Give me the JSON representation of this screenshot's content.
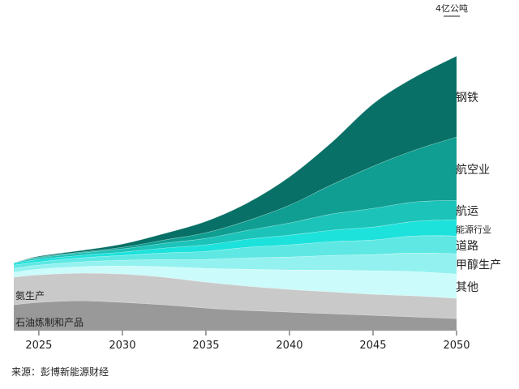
{
  "chart_data": {
    "type": "area",
    "stacked": true,
    "title": "",
    "xlabel": "",
    "ylabel": "",
    "unit_label": "4亿公吨",
    "x": [
      2023.5,
      2025,
      2027.5,
      2030,
      2032.5,
      2035,
      2037.5,
      2040,
      2042.5,
      2045,
      2047.5,
      2050
    ],
    "xlim": [
      2023.5,
      2050
    ],
    "ylim": [
      0,
      4
    ],
    "xticks": [
      "2025",
      "2030",
      "2035",
      "2040",
      "2045",
      "2050"
    ],
    "series": [
      {
        "name": "石油炼制和产品",
        "color": "#999999",
        "values": [
          0.32,
          0.35,
          0.37,
          0.35,
          0.32,
          0.28,
          0.25,
          0.23,
          0.21,
          0.19,
          0.17,
          0.15
        ]
      },
      {
        "name": "氨生产",
        "color": "#c9c9c9",
        "values": [
          0.34,
          0.34,
          0.34,
          0.35,
          0.34,
          0.32,
          0.3,
          0.28,
          0.27,
          0.26,
          0.26,
          0.25
        ]
      },
      {
        "name": "其他",
        "color": "#cbfbfb",
        "values": [
          0.06,
          0.07,
          0.08,
          0.1,
          0.13,
          0.17,
          0.21,
          0.24,
          0.27,
          0.29,
          0.3,
          0.3
        ]
      },
      {
        "name": "甲醇生产",
        "color": "#93f2ef",
        "values": [
          0.05,
          0.05,
          0.06,
          0.07,
          0.09,
          0.11,
          0.14,
          0.16,
          0.18,
          0.2,
          0.23,
          0.25
        ]
      },
      {
        "name": "道路",
        "color": "#5fe8e3",
        "values": [
          0.04,
          0.04,
          0.05,
          0.06,
          0.08,
          0.1,
          0.13,
          0.15,
          0.17,
          0.18,
          0.21,
          0.22
        ]
      },
      {
        "name": "能源行业",
        "color": "#1de2dc",
        "values": [
          0.02,
          0.03,
          0.03,
          0.04,
          0.06,
          0.08,
          0.1,
          0.12,
          0.14,
          0.16,
          0.18,
          0.2
        ]
      },
      {
        "name": "航运",
        "color": "#1cc3b9",
        "values": [
          0.01,
          0.02,
          0.03,
          0.04,
          0.06,
          0.08,
          0.11,
          0.15,
          0.2,
          0.23,
          0.24,
          0.24
        ]
      },
      {
        "name": "航空业",
        "color": "#0f9e91",
        "values": [
          0.0,
          0.01,
          0.01,
          0.02,
          0.04,
          0.07,
          0.12,
          0.22,
          0.36,
          0.52,
          0.64,
          0.78
        ]
      },
      {
        "name": "钢铁",
        "color": "#087066",
        "values": [
          0.0,
          0.01,
          0.02,
          0.04,
          0.08,
          0.14,
          0.22,
          0.35,
          0.52,
          0.77,
          0.9,
          1.0
        ]
      }
    ]
  },
  "source": "来源：彭博新能源财经"
}
